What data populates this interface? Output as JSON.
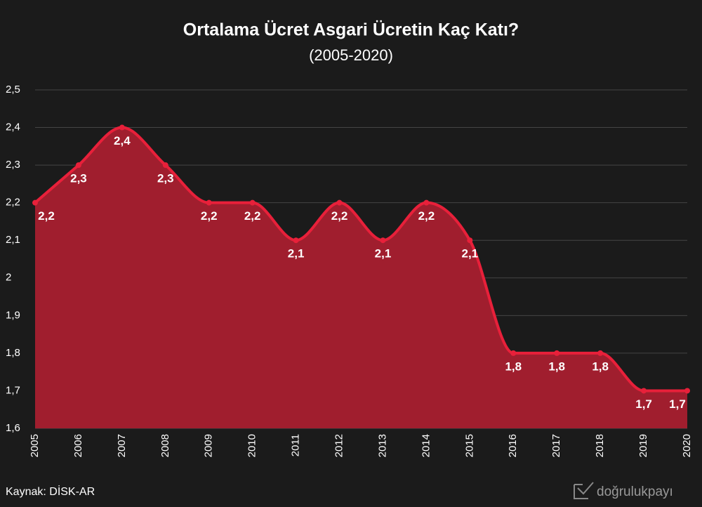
{
  "chart_data": {
    "type": "area",
    "title": "Ortalama Ücret Asgari Ücretin Kaç Katı?",
    "subtitle": "(2005-2020)",
    "categories": [
      "2005",
      "2006",
      "2007",
      "2008",
      "2009",
      "2010",
      "2011",
      "2012",
      "2013",
      "2014",
      "2015",
      "2016",
      "2017",
      "2018",
      "2019",
      "2020"
    ],
    "series": [
      {
        "color": "#e8203a",
        "fill": "#a01e2e",
        "values": [
          2.2,
          2.3,
          2.4,
          2.3,
          2.2,
          2.2,
          2.1,
          2.2,
          2.1,
          2.2,
          2.1,
          1.8,
          1.8,
          1.8,
          1.7,
          1.7
        ],
        "value_labels": [
          "2,2",
          "2,3",
          "2,4",
          "2,3",
          "2,2",
          "2,2",
          "2,1",
          "2,2",
          "2,1",
          "2,2",
          "2,1",
          "1,8",
          "1,8",
          "1,8",
          "1,7",
          "1,7"
        ]
      }
    ],
    "ylim": [
      1.6,
      2.5
    ],
    "yticks": [
      {
        "value": 1.6,
        "label": "1,6"
      },
      {
        "value": 1.7,
        "label": "1,7"
      },
      {
        "value": 1.8,
        "label": "1,8"
      },
      {
        "value": 1.9,
        "label": "1,9"
      },
      2,
      {
        "value": 2.1,
        "label": "2,1"
      },
      {
        "value": 2.2,
        "label": "2,2"
      },
      {
        "value": 2.3,
        "label": "2,3"
      },
      {
        "value": 2.4,
        "label": "2,4"
      },
      {
        "value": 2.5,
        "label": "2,5"
      }
    ],
    "grid": true,
    "source": "Kaynak: DİSK-AR",
    "brand": "doğrulukpayı"
  }
}
